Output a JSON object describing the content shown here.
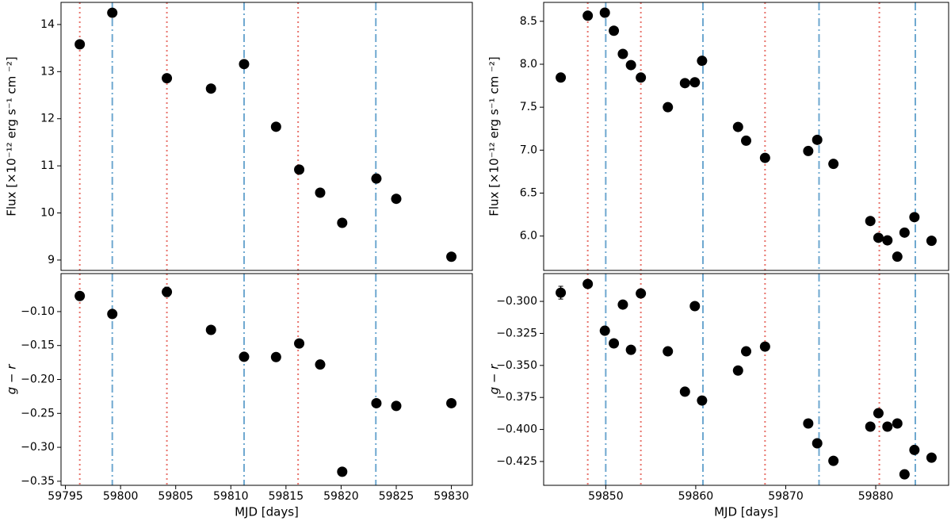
{
  "chart_data": [
    {
      "type": "scatter",
      "ylabel": "Flux [×10⁻¹² erg s⁻¹ cm ⁻²]",
      "color": "#000000",
      "x": [
        59796.3,
        59799.25,
        59804.2,
        59808.2,
        59811.2,
        59814.1,
        59816.2,
        59818.1,
        59820.1,
        59823.2,
        59825.0,
        59830.0
      ],
      "values": [
        13.58,
        14.25,
        12.86,
        12.64,
        13.16,
        11.83,
        10.92,
        10.43,
        9.79,
        10.73,
        10.3,
        9.07
      ],
      "xlim": [
        59794.6,
        59831.9
      ],
      "ylim": [
        8.78,
        14.47
      ],
      "yticks": [
        9,
        10,
        11,
        12,
        13,
        14
      ],
      "vlines": [
        {
          "color": "#e8736b",
          "style": "dotted",
          "x": [
            59796.3,
            59804.2,
            59816.1
          ]
        },
        {
          "color": "#6ea8d0",
          "style": "dashdot",
          "x": [
            59799.25,
            59811.2,
            59823.15
          ]
        }
      ]
    },
    {
      "type": "scatter",
      "ylabel": "g − r",
      "xlabel": "MJD [days]",
      "color": "#000000",
      "x": [
        59796.3,
        59799.25,
        59804.2,
        59808.2,
        59811.2,
        59814.1,
        59816.2,
        59818.1,
        59820.1,
        59823.2,
        59825.0,
        59830.0
      ],
      "values": [
        -0.077,
        -0.1035,
        -0.071,
        -0.127,
        -0.1666,
        -0.167,
        -0.147,
        -0.178,
        -0.336,
        -0.235,
        -0.239,
        -0.235
      ],
      "errors": [
        null,
        null,
        0.007,
        null,
        null,
        null,
        null,
        null,
        null,
        null,
        null,
        null
      ],
      "xlim": [
        59794.6,
        59831.9
      ],
      "ylim": [
        -0.356,
        -0.044
      ],
      "xticks": [
        59795,
        59800,
        59805,
        59810,
        59815,
        59820,
        59825,
        59830
      ],
      "yticks": [
        {
          "value": -0.1,
          "label": "−0.10"
        },
        {
          "value": -0.15,
          "label": "−0.15"
        },
        {
          "value": -0.2,
          "label": "−0.20"
        },
        {
          "value": -0.25,
          "label": "−0.25"
        },
        {
          "value": -0.3,
          "label": "−0.30"
        },
        {
          "value": -0.35,
          "label": "−0.35"
        }
      ],
      "vlines": [
        {
          "color": "#e8736b",
          "style": "dotted",
          "x": [
            59796.3,
            59804.2,
            59816.1
          ]
        },
        {
          "color": "#6ea8d0",
          "style": "dashdot",
          "x": [
            59799.25,
            59811.2,
            59823.15
          ]
        }
      ]
    },
    {
      "type": "scatter",
      "ylabel": "Flux [×10⁻¹² erg s⁻¹ cm ⁻²]",
      "color": "#000000",
      "x": [
        59845.0,
        59848.0,
        59849.9,
        59850.9,
        59851.9,
        59852.8,
        59853.9,
        59856.9,
        59858.8,
        59859.9,
        59860.7,
        59864.7,
        59865.6,
        59867.7,
        59872.5,
        59873.5,
        59875.3,
        59879.4,
        59880.3,
        59881.3,
        59882.4,
        59883.2,
        59884.3,
        59886.2
      ],
      "values": [
        7.845,
        8.565,
        8.6,
        8.39,
        8.12,
        7.99,
        7.845,
        7.5,
        7.78,
        7.79,
        8.04,
        7.27,
        7.11,
        6.91,
        6.99,
        7.12,
        6.84,
        6.175,
        5.98,
        5.95,
        5.76,
        6.04,
        6.22,
        5.945
      ],
      "xlim": [
        59843.1,
        59888.1
      ],
      "ylim": [
        5.6,
        8.72
      ],
      "yticks": [
        {
          "value": 6,
          "label": "6.0"
        },
        6.5,
        {
          "value": 7,
          "label": "7.0"
        },
        7.5,
        {
          "value": 8,
          "label": "8.0"
        },
        8.5
      ],
      "vlines": [
        {
          "color": "#e8736b",
          "style": "dotted",
          "x": [
            59848.0,
            59853.9,
            59867.7,
            59880.4
          ]
        },
        {
          "color": "#6ea8d0",
          "style": "dashdot",
          "x": [
            59850.0,
            59860.8,
            59873.7,
            59884.4
          ]
        }
      ]
    },
    {
      "type": "scatter",
      "ylabel": "g − r",
      "xlabel": "MJD [days]",
      "color": "#000000",
      "x": [
        59845.0,
        59848.0,
        59849.9,
        59850.9,
        59851.9,
        59852.8,
        59853.9,
        59856.9,
        59858.8,
        59859.9,
        59860.7,
        59864.7,
        59865.6,
        59867.7,
        59872.5,
        59873.5,
        59875.3,
        59879.4,
        59880.3,
        59881.3,
        59882.4,
        59883.2,
        59884.3,
        59886.2
      ],
      "values": [
        -0.2932,
        -0.2864,
        -0.3229,
        -0.3328,
        -0.3025,
        -0.3378,
        -0.2938,
        -0.339,
        -0.3705,
        -0.3037,
        -0.3774,
        -0.354,
        -0.339,
        -0.3353,
        -0.3953,
        -0.4108,
        -0.4245,
        -0.3978,
        -0.3873,
        -0.3978,
        -0.3953,
        -0.435,
        -0.416,
        -0.422
      ],
      "errors": [
        0.005,
        null,
        null,
        null,
        null,
        null,
        null,
        null,
        null,
        null,
        null,
        null,
        null,
        null,
        null,
        null,
        null,
        null,
        null,
        null,
        null,
        null,
        null,
        null
      ],
      "xlim": [
        59843.1,
        59888.1
      ],
      "ylim": [
        -0.4436,
        -0.2783
      ],
      "xticks": [
        59850,
        59860,
        59870,
        59880
      ],
      "yticks": [
        {
          "value": -0.3,
          "label": "−0.300"
        },
        {
          "value": -0.325,
          "label": "−0.325"
        },
        {
          "value": -0.35,
          "label": "−0.350"
        },
        {
          "value": -0.375,
          "label": "−0.375"
        },
        {
          "value": -0.4,
          "label": "−0.400"
        },
        {
          "value": -0.425,
          "label": "−0.425"
        }
      ],
      "vlines": [
        {
          "color": "#e8736b",
          "style": "dotted",
          "x": [
            59848.0,
            59853.9,
            59867.7,
            59880.4
          ]
        },
        {
          "color": "#6ea8d0",
          "style": "dashdot",
          "x": [
            59850.0,
            59860.8,
            59873.7,
            59884.4
          ]
        }
      ]
    }
  ]
}
